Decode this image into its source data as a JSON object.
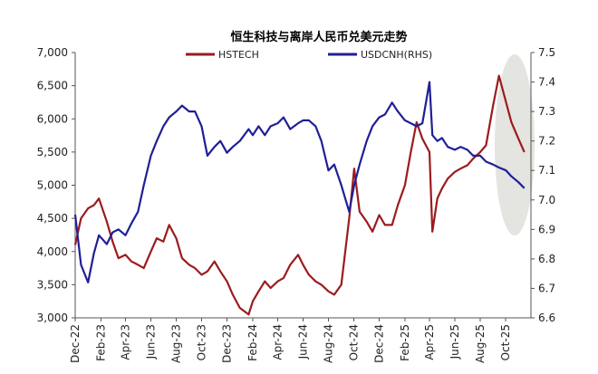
{
  "chart_data": {
    "type": "line",
    "title": "恒生科技与离岸人民币兑美元走势",
    "x_tick_labels": [
      "Dec-22",
      "Feb-23",
      "Apr-23",
      "Jun-23",
      "Aug-23",
      "Oct-23",
      "Dec-23",
      "Feb-24",
      "Apr-24",
      "Jun-24",
      "Aug-24",
      "Oct-24",
      "Dec-24",
      "Feb-25",
      "Apr-25",
      "Jun-25",
      "Aug-25",
      "Oct-25"
    ],
    "y_left": {
      "ylim": [
        3000,
        7000
      ],
      "ticks": [
        "3,000",
        "3,500",
        "4,000",
        "4,500",
        "5,000",
        "5,500",
        "6,000",
        "6,500",
        "7,000"
      ]
    },
    "y_right": {
      "ylim": [
        6.6,
        7.5
      ],
      "ticks": [
        "6.6",
        "6.7",
        "6.8",
        "6.9",
        "7.0",
        "7.1",
        "7.2",
        "7.3",
        "7.4",
        "7.5"
      ]
    },
    "annotation": "highlighted ellipse over Aug-25 to Nov-25",
    "series": [
      {
        "name": "HSTECH",
        "axis": "left",
        "color": "#9B1B1E",
        "x": [
          "2022-12-01",
          "2022-12-15",
          "2023-01-01",
          "2023-01-15",
          "2023-01-27",
          "2023-02-15",
          "2023-03-01",
          "2023-03-15",
          "2023-04-01",
          "2023-04-15",
          "2023-05-01",
          "2023-05-15",
          "2023-06-01",
          "2023-06-15",
          "2023-07-01",
          "2023-07-15",
          "2023-08-01",
          "2023-08-15",
          "2023-09-01",
          "2023-09-15",
          "2023-10-01",
          "2023-10-15",
          "2023-11-01",
          "2023-11-15",
          "2023-12-01",
          "2023-12-15",
          "2024-01-01",
          "2024-01-22",
          "2024-02-01",
          "2024-02-15",
          "2024-03-01",
          "2024-03-15",
          "2024-04-01",
          "2024-04-15",
          "2024-05-01",
          "2024-05-20",
          "2024-06-01",
          "2024-06-15",
          "2024-07-01",
          "2024-07-15",
          "2024-08-01",
          "2024-08-15",
          "2024-09-01",
          "2024-09-20",
          "2024-10-02",
          "2024-10-15",
          "2024-11-01",
          "2024-11-15",
          "2024-12-01",
          "2024-12-15",
          "2025-01-01",
          "2025-01-15",
          "2025-02-01",
          "2025-02-15",
          "2025-03-01",
          "2025-03-15",
          "2025-04-01",
          "2025-04-08",
          "2025-04-20",
          "2025-05-01",
          "2025-05-15",
          "2025-06-01",
          "2025-06-15",
          "2025-07-01",
          "2025-07-15",
          "2025-08-01",
          "2025-08-15",
          "2025-09-01",
          "2025-09-15",
          "2025-10-02",
          "2025-10-15",
          "2025-11-01",
          "2025-11-15"
        ],
        "y": [
          4100,
          4500,
          4650,
          4700,
          4800,
          4450,
          4150,
          3900,
          3950,
          3850,
          3800,
          3750,
          4000,
          4200,
          4150,
          4400,
          4200,
          3900,
          3800,
          3750,
          3650,
          3700,
          3850,
          3700,
          3550,
          3350,
          3150,
          3050,
          3250,
          3400,
          3550,
          3450,
          3550,
          3600,
          3800,
          3950,
          3800,
          3650,
          3550,
          3500,
          3400,
          3350,
          3500,
          4500,
          5250,
          4600,
          4450,
          4300,
          4550,
          4400,
          4400,
          4700,
          5000,
          5500,
          5950,
          5700,
          5500,
          4300,
          4800,
          4950,
          5100,
          5200,
          5250,
          5300,
          5400,
          5500,
          5600,
          6200,
          6650,
          6250,
          5950,
          5700,
          5500
        ]
      },
      {
        "name": "USDCNH(RHS)",
        "axis": "right",
        "color": "#1F1F96",
        "x": [
          "2022-12-01",
          "2022-12-15",
          "2023-01-01",
          "2023-01-15",
          "2023-01-27",
          "2023-02-15",
          "2023-03-01",
          "2023-03-15",
          "2023-04-01",
          "2023-04-15",
          "2023-05-01",
          "2023-05-15",
          "2023-06-01",
          "2023-06-15",
          "2023-07-01",
          "2023-07-15",
          "2023-08-01",
          "2023-08-15",
          "2023-09-01",
          "2023-09-15",
          "2023-10-01",
          "2023-10-15",
          "2023-11-01",
          "2023-11-15",
          "2023-12-01",
          "2023-12-15",
          "2024-01-01",
          "2024-01-22",
          "2024-02-01",
          "2024-02-15",
          "2024-03-01",
          "2024-03-15",
          "2024-04-01",
          "2024-04-15",
          "2024-05-01",
          "2024-05-20",
          "2024-06-01",
          "2024-06-15",
          "2024-07-01",
          "2024-07-15",
          "2024-08-01",
          "2024-08-15",
          "2024-09-01",
          "2024-09-20",
          "2024-10-02",
          "2024-10-15",
          "2024-11-01",
          "2024-11-15",
          "2024-12-01",
          "2024-12-15",
          "2025-01-01",
          "2025-01-15",
          "2025-02-01",
          "2025-02-15",
          "2025-03-01",
          "2025-03-15",
          "2025-04-01",
          "2025-04-08",
          "2025-04-20",
          "2025-05-01",
          "2025-05-15",
          "2025-06-01",
          "2025-06-15",
          "2025-07-01",
          "2025-07-15",
          "2025-08-01",
          "2025-08-15",
          "2025-09-01",
          "2025-09-15",
          "2025-10-02",
          "2025-10-15",
          "2025-11-01",
          "2025-11-15"
        ],
        "y": [
          6.95,
          6.78,
          6.72,
          6.82,
          6.88,
          6.85,
          6.89,
          6.9,
          6.88,
          6.92,
          6.96,
          7.05,
          7.15,
          7.2,
          7.25,
          7.28,
          7.3,
          7.32,
          7.3,
          7.3,
          7.25,
          7.15,
          7.18,
          7.2,
          7.16,
          7.18,
          7.2,
          7.24,
          7.22,
          7.25,
          7.22,
          7.25,
          7.26,
          7.28,
          7.24,
          7.26,
          7.27,
          7.27,
          7.25,
          7.2,
          7.1,
          7.12,
          7.05,
          6.96,
          7.05,
          7.12,
          7.2,
          7.25,
          7.28,
          7.29,
          7.33,
          7.3,
          7.27,
          7.26,
          7.25,
          7.26,
          7.4,
          7.22,
          7.2,
          7.21,
          7.18,
          7.17,
          7.18,
          7.17,
          7.15,
          7.15,
          7.13,
          7.12,
          7.11,
          7.1,
          7.08,
          7.06,
          7.04
        ]
      }
    ]
  }
}
